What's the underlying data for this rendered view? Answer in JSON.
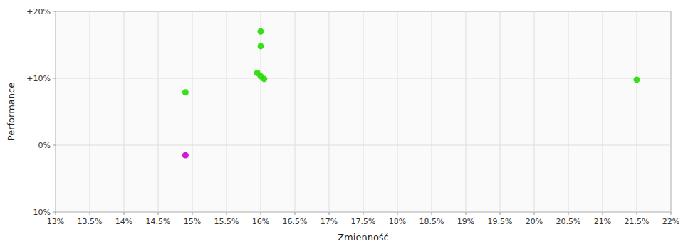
{
  "chart_data": {
    "type": "scatter",
    "x_label": "Zmienność",
    "y_label": "Performance",
    "xlim": [
      0.13,
      0.22
    ],
    "ylim": [
      -0.1,
      0.2
    ],
    "xticks": [
      {
        "value": 0.13,
        "label": "13%"
      },
      {
        "value": 0.135,
        "label": "13.5%"
      },
      {
        "value": 0.14,
        "label": "14%"
      },
      {
        "value": 0.145,
        "label": "14.5%"
      },
      {
        "value": 0.15,
        "label": "15%"
      },
      {
        "value": 0.155,
        "label": "15.5%"
      },
      {
        "value": 0.16,
        "label": "16%"
      },
      {
        "value": 0.165,
        "label": "16.5%"
      },
      {
        "value": 0.17,
        "label": "17%"
      },
      {
        "value": 0.175,
        "label": "17.5%"
      },
      {
        "value": 0.18,
        "label": "18%"
      },
      {
        "value": 0.185,
        "label": "18.5%"
      },
      {
        "value": 0.19,
        "label": "19%"
      },
      {
        "value": 0.195,
        "label": "19.5%"
      },
      {
        "value": 0.2,
        "label": "20%"
      },
      {
        "value": 0.205,
        "label": "20.5%"
      },
      {
        "value": 0.21,
        "label": "21%"
      },
      {
        "value": 0.215,
        "label": "21.5%"
      },
      {
        "value": 0.22,
        "label": "22%"
      }
    ],
    "yticks": [
      {
        "value": -0.1,
        "label": "-10%"
      },
      {
        "value": 0.0,
        "label": "0%"
      },
      {
        "value": 0.1,
        "label": "+10%"
      },
      {
        "value": 0.2,
        "label": "+20%"
      }
    ],
    "grid": true,
    "series": [
      {
        "color": "#22dd00",
        "x": [
          0.16,
          0.16,
          0.1595,
          0.16,
          0.1605,
          0.149,
          0.215
        ],
        "values": [
          0.17,
          0.148,
          0.108,
          0.103,
          0.099,
          0.079,
          0.098
        ]
      },
      {
        "color": "#cc00cc",
        "x": [
          0.149
        ],
        "values": [
          -0.015
        ]
      }
    ]
  }
}
